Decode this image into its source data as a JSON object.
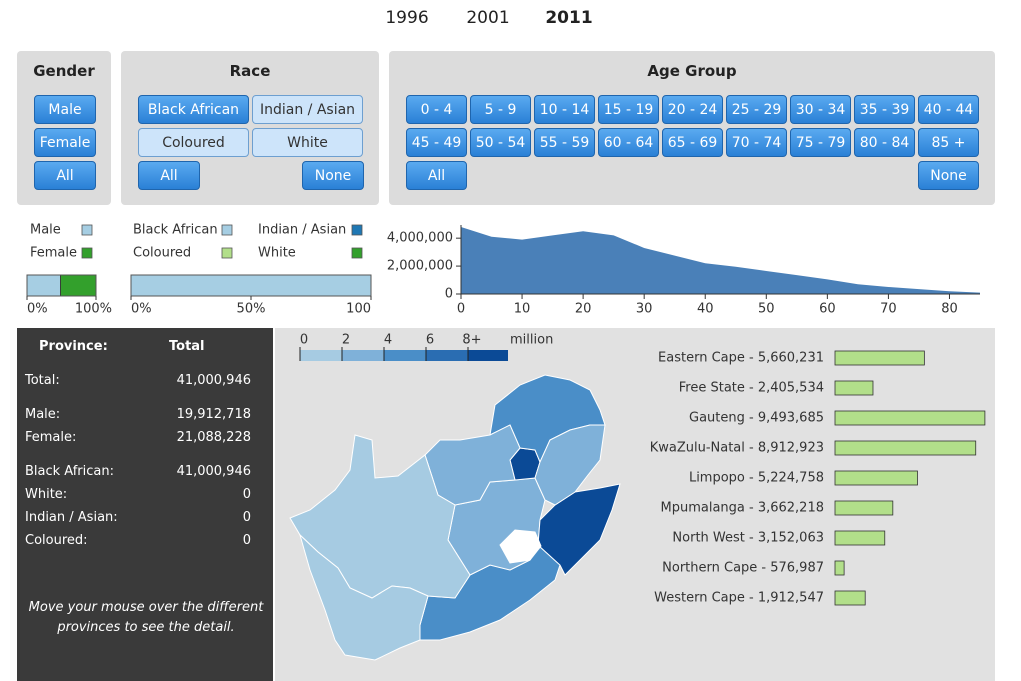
{
  "years": [
    {
      "label": "1996",
      "selected": false
    },
    {
      "label": "2001",
      "selected": false
    },
    {
      "label": "2011",
      "selected": true
    }
  ],
  "filters": [
    {
      "title": "Gender",
      "buttons": [
        {
          "label": "Male",
          "active": true
        },
        {
          "label": "Female",
          "active": true
        },
        {
          "label": "All",
          "active": true
        }
      ]
    },
    {
      "title": "Race",
      "buttons": [
        {
          "label": "Black African",
          "active": true
        },
        {
          "label": "Indian / Asian",
          "active": false
        },
        {
          "label": "Coloured",
          "active": false
        },
        {
          "label": "White",
          "active": false
        },
        {
          "label": "All",
          "active": true
        },
        {
          "label": "None",
          "active": true
        }
      ]
    },
    {
      "title": "Age Group",
      "buttons": [
        {
          "label": "0 - 4",
          "active": true
        },
        {
          "label": "5 - 9",
          "active": true
        },
        {
          "label": "10 - 14",
          "active": true
        },
        {
          "label": "15 - 19",
          "active": true
        },
        {
          "label": "20 - 24",
          "active": true
        },
        {
          "label": "25 - 29",
          "active": true
        },
        {
          "label": "30 - 34",
          "active": true
        },
        {
          "label": "35 - 39",
          "active": true
        },
        {
          "label": "40 - 44",
          "active": true
        },
        {
          "label": "45 - 49",
          "active": true
        },
        {
          "label": "50 - 54",
          "active": true
        },
        {
          "label": "55 - 59",
          "active": true
        },
        {
          "label": "60 - 64",
          "active": true
        },
        {
          "label": "65 - 69",
          "active": true
        },
        {
          "label": "70 - 74",
          "active": true
        },
        {
          "label": "75 - 79",
          "active": true
        },
        {
          "label": "80 - 84",
          "active": true
        },
        {
          "label": "85 +",
          "active": true
        },
        {
          "label": "All",
          "active": true
        },
        {
          "label": "None",
          "active": true
        }
      ]
    }
  ],
  "chart_data": [
    {
      "type": "stacked_bar",
      "series": [
        {
          "name": "Male",
          "color": "#a6cee3",
          "values": [
            48.6
          ]
        },
        {
          "name": "Female",
          "color": "#33a02c",
          "values": [
            51.4
          ]
        }
      ],
      "xlim": [
        0,
        100
      ],
      "xticks": [
        {
          "value": 0,
          "label": "0%"
        },
        {
          "value": 100,
          "label": "100%"
        }
      ]
    },
    {
      "type": "stacked_bar",
      "series": [
        {
          "name": "Black African",
          "color": "#a6cee3",
          "values": [
            100
          ]
        },
        {
          "name": "Indian / Asian",
          "color": "#1f78b4",
          "values": [
            0
          ]
        },
        {
          "name": "Coloured",
          "color": "#b2df8a",
          "values": [
            0
          ]
        },
        {
          "name": "White",
          "color": "#33a02c",
          "values": [
            0
          ]
        }
      ],
      "xlim": [
        0,
        100
      ],
      "xticks": [
        {
          "value": 0,
          "label": "0%"
        },
        {
          "value": 50,
          "label": "50%"
        },
        100
      ]
    },
    {
      "type": "area",
      "color": "#4a80b8",
      "x": [
        0,
        5,
        10,
        15,
        20,
        25,
        30,
        35,
        40,
        45,
        50,
        55,
        60,
        65,
        70,
        75,
        80,
        85
      ],
      "values": [
        4800000,
        4100000,
        3900000,
        4200000,
        4500000,
        4200000,
        3300000,
        2750000,
        2200000,
        1950000,
        1650000,
        1350000,
        1050000,
        700000,
        500000,
        350000,
        200000,
        100000
      ],
      "xlim": [
        0,
        85
      ],
      "ylim": [
        0,
        4800000
      ],
      "xticks": [
        0,
        10,
        20,
        30,
        40,
        50,
        60,
        70,
        80
      ],
      "yticks": [
        0,
        {
          "value": 2000000,
          "label": "2,000,000"
        },
        {
          "value": 4000000,
          "label": "4,000,000"
        }
      ]
    },
    {
      "type": "hbar",
      "color": "#b2df8a",
      "categories": [
        "Eastern Cape - 5,660,231",
        "Free State - 2,405,534",
        "Gauteng - 9,493,685",
        "KwaZulu-Natal - 8,912,923",
        "Limpopo - 5,224,758",
        "Mpumalanga - 3,662,218",
        "North West - 3,152,063",
        "Northern Cape - 576,987",
        "Western Cape - 1,912,547"
      ],
      "values": [
        5660231,
        2405534,
        9493685,
        8912923,
        5224758,
        3662218,
        3152063,
        576987,
        1912547
      ],
      "xlim": [
        0,
        9500000
      ],
      "color_scale": {
        "ticks": [
          0,
          2,
          4,
          6,
          {
            "value": 8,
            "label": "8+"
          }
        ],
        "unit": "million",
        "colors": [
          "#a6cbe2",
          "#7fb1d9",
          "#4a8ec8",
          "#2a6db2",
          "#0b4a96"
        ]
      }
    }
  ],
  "summary": {
    "header": [
      "Province:",
      "Total"
    ],
    "groups": [
      [
        [
          "Total:",
          "41,000,946"
        ]
      ],
      [
        [
          "Male:",
          "19,912,718"
        ],
        [
          "Female:",
          "21,088,228"
        ]
      ],
      [
        [
          "Black African:",
          "41,000,946"
        ],
        [
          "White:",
          "0"
        ],
        [
          "Indian / Asian:",
          "0"
        ],
        [
          "Coloured:",
          "0"
        ]
      ]
    ],
    "note": "Move your mouse over the different provinces to see the detail."
  }
}
